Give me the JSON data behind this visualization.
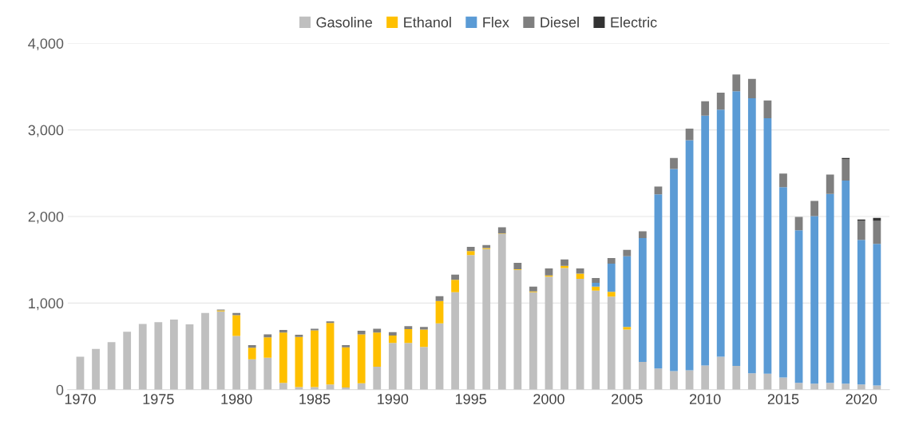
{
  "chart_data": {
    "type": "bar",
    "stacked": true,
    "categories": [
      "1970",
      null,
      null,
      null,
      null,
      "1975",
      null,
      null,
      null,
      null,
      "1980",
      null,
      null,
      null,
      null,
      "1985",
      null,
      null,
      null,
      null,
      "1990",
      null,
      null,
      null,
      null,
      "1995",
      null,
      null,
      null,
      null,
      "2000",
      null,
      null,
      null,
      null,
      "2005",
      null,
      null,
      null,
      null,
      "2010",
      null,
      null,
      null,
      null,
      "2015",
      null,
      null,
      null,
      null,
      "2020",
      null
    ],
    "series": [
      {
        "name": "Gasoline",
        "color": "#bfbfbf",
        "values": [
          380,
          470,
          550,
          670,
          760,
          780,
          810,
          755,
          885,
          905,
          620,
          350,
          370,
          80,
          30,
          30,
          60,
          25,
          75,
          265,
          540,
          540,
          495,
          765,
          1125,
          1555,
          1625,
          1800,
          1385,
          1125,
          1305,
          1405,
          1280,
          1145,
          1075,
          695,
          320,
          245,
          215,
          225,
          280,
          380,
          275,
          190,
          185,
          140,
          80,
          70,
          80,
          70,
          60,
          50
        ]
      },
      {
        "name": "Ethanol",
        "color": "#ffc000",
        "values": [
          0,
          0,
          0,
          0,
          0,
          0,
          0,
          0,
          0,
          10,
          240,
          135,
          235,
          580,
          580,
          655,
          710,
          465,
          565,
          395,
          85,
          160,
          200,
          260,
          145,
          45,
          10,
          5,
          5,
          10,
          15,
          25,
          60,
          45,
          55,
          30,
          0,
          0,
          0,
          0,
          0,
          0,
          0,
          0,
          0,
          0,
          0,
          0,
          0,
          0,
          0,
          0
        ]
      },
      {
        "name": "Flex",
        "color": "#5b9bd5",
        "values": [
          0,
          0,
          0,
          0,
          0,
          0,
          0,
          0,
          0,
          0,
          0,
          0,
          0,
          0,
          0,
          0,
          0,
          0,
          0,
          0,
          0,
          0,
          0,
          0,
          0,
          0,
          0,
          0,
          0,
          0,
          0,
          0,
          0,
          45,
          325,
          815,
          1430,
          2010,
          2335,
          2655,
          2885,
          2855,
          3170,
          3175,
          2950,
          2200,
          1760,
          1935,
          2180,
          2345,
          1670,
          1635
        ]
      },
      {
        "name": "Diesel",
        "color": "#7f7f7f",
        "values": [
          0,
          0,
          0,
          0,
          0,
          0,
          0,
          0,
          0,
          10,
          25,
          30,
          35,
          30,
          25,
          20,
          20,
          25,
          40,
          45,
          40,
          35,
          30,
          55,
          60,
          50,
          35,
          70,
          75,
          55,
          80,
          75,
          60,
          55,
          65,
          75,
          80,
          90,
          125,
          135,
          165,
          195,
          195,
          225,
          205,
          155,
          155,
          175,
          225,
          250,
          220,
          265
        ]
      },
      {
        "name": "Electric",
        "color": "#333333",
        "values": [
          0,
          0,
          0,
          0,
          0,
          0,
          0,
          0,
          0,
          0,
          0,
          0,
          0,
          0,
          0,
          0,
          0,
          0,
          0,
          0,
          0,
          0,
          0,
          0,
          0,
          0,
          0,
          0,
          0,
          0,
          0,
          0,
          0,
          0,
          0,
          0,
          0,
          0,
          0,
          0,
          0,
          0,
          0,
          0,
          0,
          0,
          0,
          0,
          0,
          10,
          15,
          35
        ]
      }
    ],
    "ylim": [
      0,
      4000
    ],
    "yticks": [
      {
        "value": 0,
        "label": "0"
      },
      {
        "value": 1000,
        "label": "1,000"
      },
      {
        "value": 2000,
        "label": "2,000"
      },
      {
        "value": 3000,
        "label": "3,000"
      },
      {
        "value": 4000,
        "label": "4,000"
      }
    ],
    "grid": "y",
    "legend": "top"
  }
}
